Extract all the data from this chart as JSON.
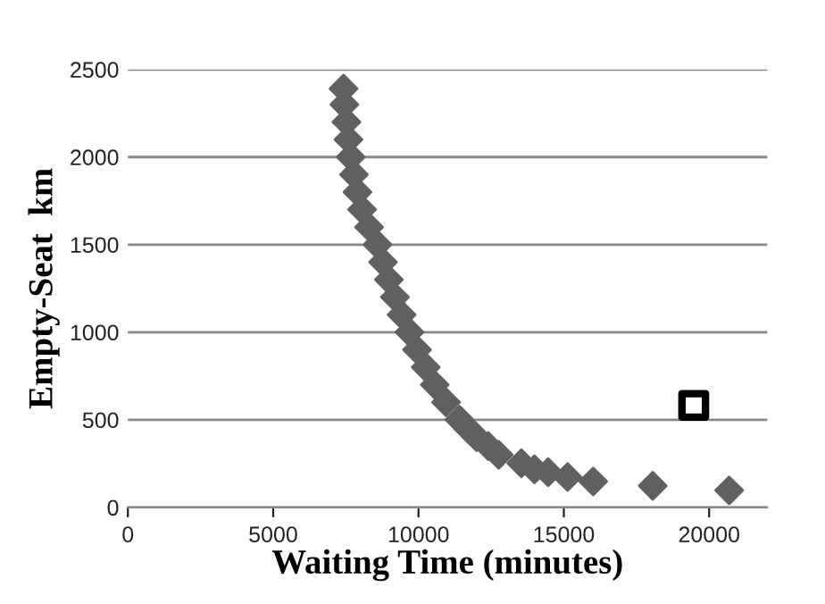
{
  "chart_data": {
    "type": "scatter",
    "xlabel": "Waiting Time (minutes)",
    "ylabel": "Empty-Seat  km",
    "xlim": [
      0,
      22000
    ],
    "xticks": [
      0,
      5000,
      10000,
      15000,
      20000
    ],
    "ylim": [
      0,
      2500
    ],
    "yticks": [
      0,
      500,
      1000,
      1500,
      2000,
      2500
    ],
    "grid": "y",
    "legend": false,
    "series": [
      {
        "color": "#606060",
        "marker": "diamond",
        "x": [
          7420,
          7450,
          7520,
          7590,
          7670,
          7780,
          7900,
          8060,
          8300,
          8590,
          8780,
          8980,
          9190,
          9420,
          9690,
          9950,
          10250,
          10560,
          10950,
          11410,
          11700,
          12000,
          12400,
          12760,
          13540,
          13990,
          14460,
          15130,
          16010,
          18060,
          20690
        ],
        "values": [
          2390,
          2300,
          2200,
          2100,
          2000,
          1900,
          1800,
          1700,
          1600,
          1500,
          1400,
          1300,
          1200,
          1100,
          1000,
          900,
          800,
          700,
          600,
          500,
          450,
          400,
          350,
          300,
          252,
          217,
          201,
          173,
          148,
          123,
          97
        ]
      },
      {
        "color": "#000000",
        "marker": "square",
        "x": [
          19470
        ],
        "values": [
          582
        ]
      }
    ]
  }
}
